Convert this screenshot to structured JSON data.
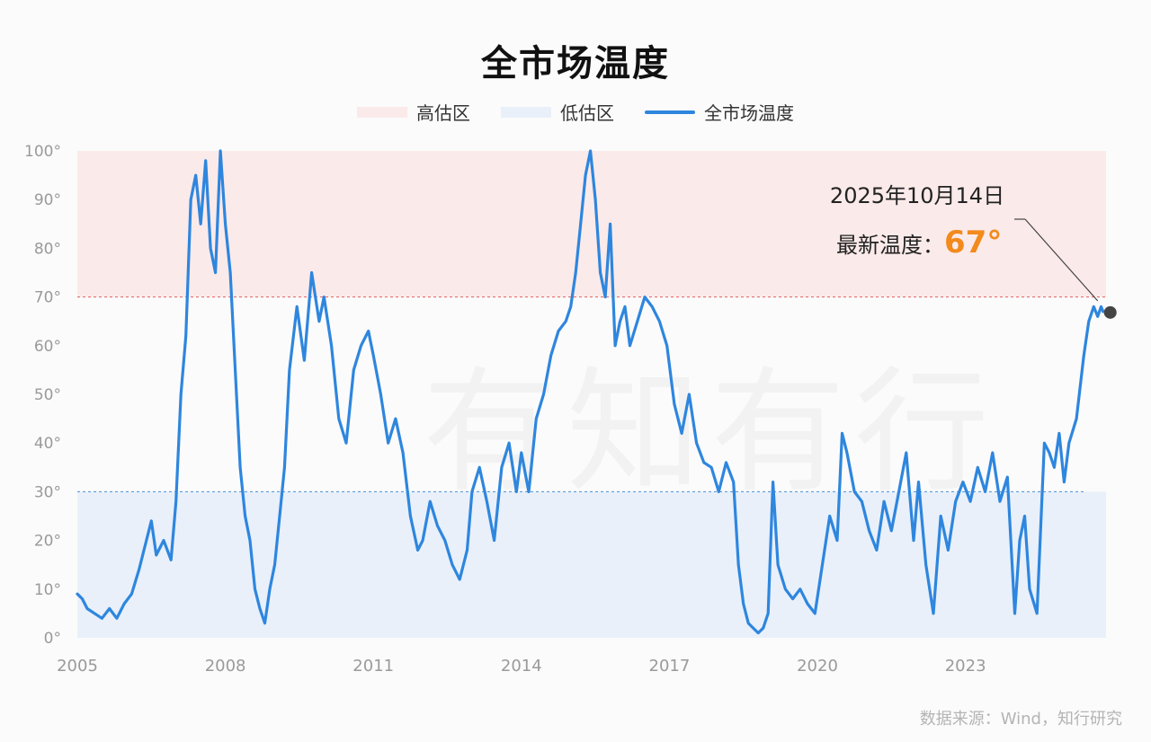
{
  "title": "全市场温度",
  "legend": {
    "high": "高估区",
    "low": "低估区",
    "line": "全市场温度"
  },
  "colors": {
    "line": "#2e86de",
    "high_zone": "#fbeaea",
    "low_zone": "#e9f0fa",
    "high_threshold": "#e06060",
    "low_threshold": "#4a8fd8",
    "accent": "#f28a1c",
    "marker": "#444444"
  },
  "annotation": {
    "date": "2025年10月14日",
    "label": "最新温度：",
    "value": "67°"
  },
  "source": "数据来源：Wind，知行研究",
  "chart_data": {
    "type": "line",
    "title": "全市场温度",
    "xlim": [
      2005,
      2025.85
    ],
    "ylim": [
      0,
      100
    ],
    "x_ticks": [
      2005,
      2008,
      2011,
      2014,
      2017,
      2020,
      2023
    ],
    "y_ticks": [
      "0°",
      "10°",
      "20°",
      "30°",
      "40°",
      "50°",
      "60°",
      "70°",
      "80°",
      "90°",
      "100°"
    ],
    "high_zone": [
      70,
      100
    ],
    "low_zone": [
      0,
      30
    ],
    "grid": false,
    "legend_position": "top",
    "series": [
      {
        "name": "全市场温度",
        "x": [
          2005.0,
          2005.1,
          2005.2,
          2005.35,
          2005.5,
          2005.65,
          2005.8,
          2005.95,
          2006.1,
          2006.25,
          2006.4,
          2006.5,
          2006.6,
          2006.75,
          2006.9,
          2007.0,
          2007.1,
          2007.2,
          2007.3,
          2007.4,
          2007.5,
          2007.6,
          2007.7,
          2007.8,
          2007.9,
          2008.0,
          2008.1,
          2008.2,
          2008.3,
          2008.4,
          2008.5,
          2008.6,
          2008.7,
          2008.8,
          2008.9,
          2009.0,
          2009.1,
          2009.2,
          2009.3,
          2009.45,
          2009.6,
          2009.75,
          2009.9,
          2010.0,
          2010.15,
          2010.3,
          2010.45,
          2010.6,
          2010.75,
          2010.9,
          2011.0,
          2011.15,
          2011.3,
          2011.45,
          2011.6,
          2011.75,
          2011.9,
          2012.0,
          2012.15,
          2012.3,
          2012.45,
          2012.6,
          2012.75,
          2012.9,
          2013.0,
          2013.15,
          2013.3,
          2013.45,
          2013.6,
          2013.75,
          2013.9,
          2014.0,
          2014.15,
          2014.3,
          2014.45,
          2014.6,
          2014.75,
          2014.9,
          2015.0,
          2015.1,
          2015.2,
          2015.3,
          2015.4,
          2015.5,
          2015.6,
          2015.7,
          2015.8,
          2015.9,
          2016.0,
          2016.1,
          2016.2,
          2016.35,
          2016.5,
          2016.65,
          2016.8,
          2016.95,
          2017.1,
          2017.25,
          2017.4,
          2017.55,
          2017.7,
          2017.85,
          2018.0,
          2018.15,
          2018.3,
          2018.4,
          2018.5,
          2018.6,
          2018.7,
          2018.8,
          2018.9,
          2019.0,
          2019.1,
          2019.2,
          2019.35,
          2019.5,
          2019.65,
          2019.8,
          2019.95,
          2020.1,
          2020.25,
          2020.4,
          2020.5,
          2020.6,
          2020.75,
          2020.9,
          2021.05,
          2021.2,
          2021.35,
          2021.5,
          2021.65,
          2021.8,
          2021.95,
          2022.05,
          2022.2,
          2022.35,
          2022.5,
          2022.65,
          2022.8,
          2022.95,
          2023.1,
          2023.25,
          2023.4,
          2023.55,
          2023.7,
          2023.85,
          2024.0,
          2024.1,
          2024.2,
          2024.3,
          2024.45,
          2024.6,
          2024.7,
          2024.8,
          2024.9,
          2025.0,
          2025.1,
          2025.25,
          2025.4,
          2025.5,
          2025.6,
          2025.68,
          2025.75,
          2025.79
        ],
        "y": [
          9,
          8,
          6,
          5,
          4,
          6,
          4,
          7,
          9,
          14,
          20,
          24,
          17,
          20,
          16,
          28,
          50,
          62,
          90,
          95,
          85,
          98,
          80,
          75,
          100,
          85,
          75,
          55,
          35,
          25,
          20,
          10,
          6,
          3,
          10,
          15,
          25,
          35,
          55,
          68,
          57,
          75,
          65,
          70,
          60,
          45,
          40,
          55,
          60,
          63,
          58,
          50,
          40,
          45,
          38,
          25,
          18,
          20,
          28,
          23,
          20,
          15,
          12,
          18,
          30,
          35,
          28,
          20,
          35,
          40,
          30,
          38,
          30,
          45,
          50,
          58,
          63,
          65,
          68,
          75,
          85,
          95,
          100,
          90,
          75,
          70,
          85,
          60,
          65,
          68,
          60,
          65,
          70,
          68,
          65,
          60,
          48,
          42,
          50,
          40,
          36,
          35,
          30,
          36,
          32,
          15,
          7,
          3,
          2,
          1,
          2,
          5,
          32,
          15,
          10,
          8,
          10,
          7,
          5,
          15,
          25,
          20,
          42,
          38,
          30,
          28,
          22,
          18,
          28,
          22,
          30,
          38,
          20,
          32,
          15,
          5,
          25,
          18,
          28,
          32,
          28,
          35,
          30,
          38,
          28,
          33,
          5,
          20,
          25,
          10,
          5,
          40,
          38,
          35,
          42,
          32,
          40,
          45,
          58,
          65,
          68,
          66,
          68,
          67
        ]
      }
    ]
  }
}
